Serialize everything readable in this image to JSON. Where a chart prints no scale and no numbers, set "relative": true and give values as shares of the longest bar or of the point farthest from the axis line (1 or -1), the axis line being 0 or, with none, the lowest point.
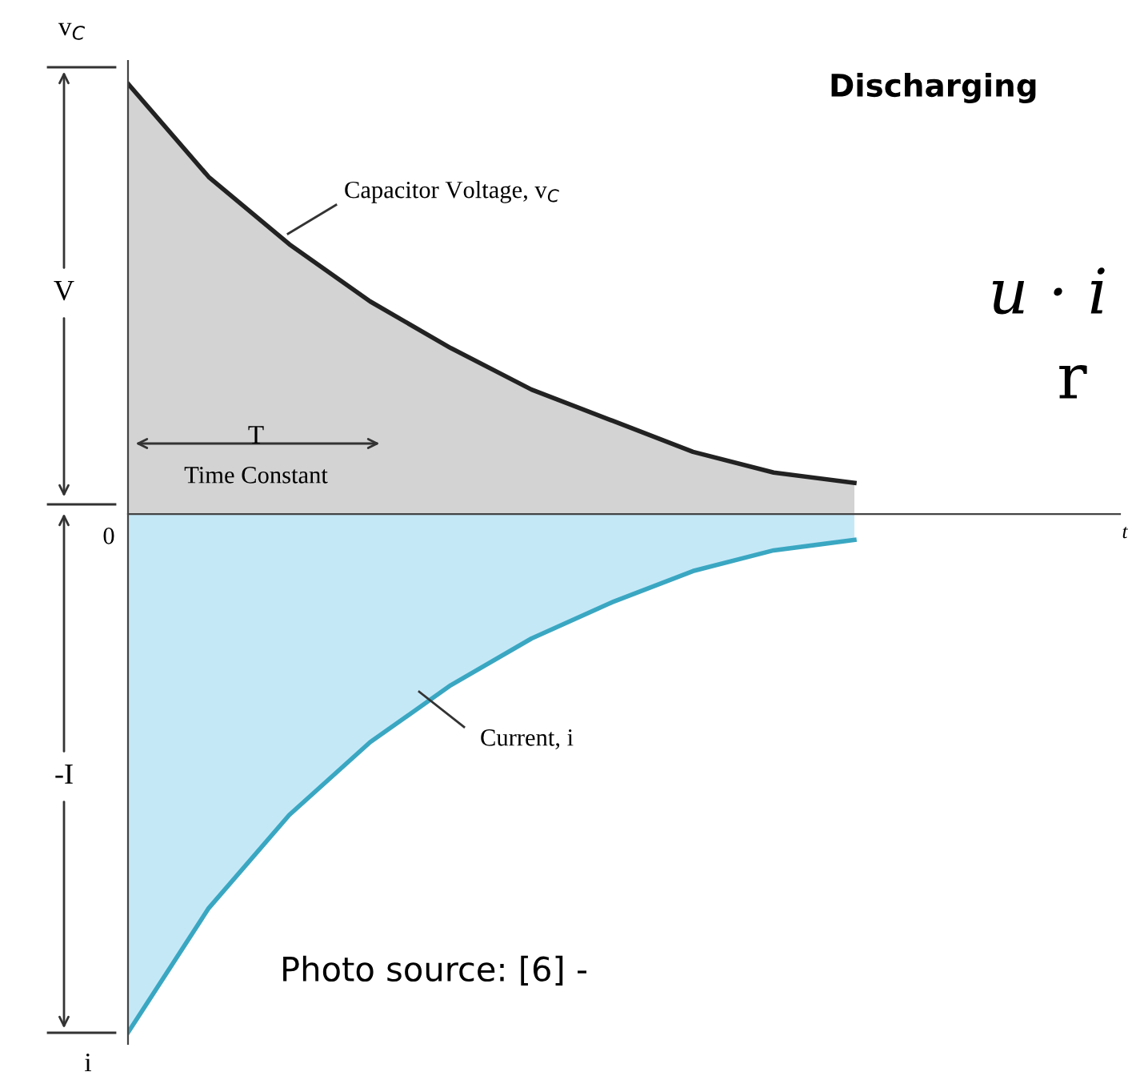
{
  "chart_data": {
    "type": "area",
    "relative": true,
    "title": "Discharging",
    "ylabel": "v$_{C}$",
    "categories": [
      null,
      null,
      null,
      null,
      null,
      null,
      null,
      null,
      null,
      null
    ],
    "series": [
      {
        "name": "Capacitor Voltage, v$_{C}$",
        "color": "#222222",
        "values": [
          0.83,
          0.65,
          0.52,
          0.41,
          0.32,
          0.24,
          0.18,
          0.12,
          0.08,
          0.06
        ]
      },
      {
        "name": "Current, i",
        "color": "#3aa7c2",
        "values": [
          -1,
          -0.76,
          -0.58,
          -0.44,
          -0.33,
          -0.24,
          -0.17,
          -0.11,
          -0.07,
          -0.05
        ]
      }
    ],
    "annotations": [
      "V",
      "-I",
      "0",
      "t",
      "i",
      "T",
      "Time Constant",
      "u · i",
      "r",
      "Photo source: [6] -"
    ]
  }
}
